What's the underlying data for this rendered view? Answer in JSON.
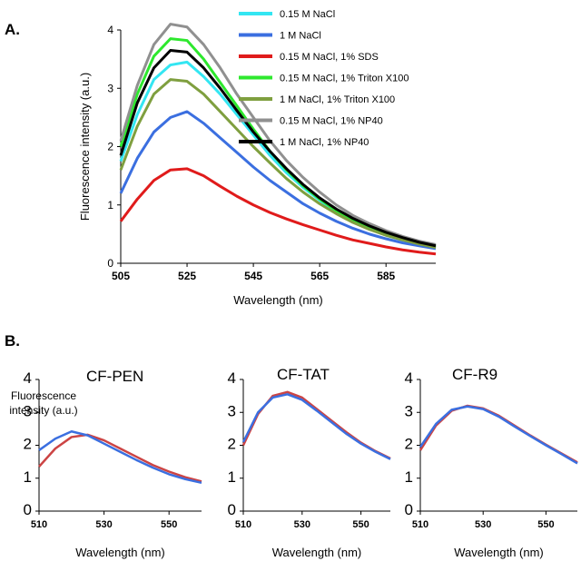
{
  "panel_labels": [
    "A.",
    "B."
  ],
  "chart_data": [
    {
      "type": "line",
      "xlabel": "Wavelength (nm)",
      "ylabel": "Fluorescence intensity (a.u.)",
      "xlim": [
        505,
        600
      ],
      "ylim": [
        0,
        4
      ],
      "xticks": [
        505,
        525,
        545,
        565,
        585
      ],
      "yticks": [
        0,
        1,
        2,
        3,
        4
      ],
      "legend_position": "top-right",
      "x": [
        505,
        510,
        515,
        520,
        525,
        530,
        535,
        540,
        545,
        550,
        555,
        560,
        565,
        570,
        575,
        580,
        585,
        590,
        595,
        600
      ],
      "series": [
        {
          "name": "0.15 M NaCl",
          "color": "#33e6f2",
          "values": [
            1.75,
            2.55,
            3.15,
            3.4,
            3.45,
            3.2,
            2.9,
            2.55,
            2.2,
            1.85,
            1.55,
            1.3,
            1.08,
            0.88,
            0.72,
            0.6,
            0.48,
            0.4,
            0.33,
            0.28
          ]
        },
        {
          "name": "1 M NaCl",
          "color": "#3b6fe0",
          "values": [
            1.2,
            1.8,
            2.25,
            2.5,
            2.6,
            2.4,
            2.15,
            1.9,
            1.65,
            1.42,
            1.22,
            1.02,
            0.86,
            0.72,
            0.6,
            0.5,
            0.42,
            0.35,
            0.3,
            0.25
          ]
        },
        {
          "name": "0.15 M NaCl, 1% SDS",
          "color": "#e01b1b",
          "values": [
            0.72,
            1.1,
            1.42,
            1.6,
            1.62,
            1.5,
            1.32,
            1.15,
            1.0,
            0.87,
            0.76,
            0.66,
            0.57,
            0.48,
            0.4,
            0.34,
            0.28,
            0.23,
            0.19,
            0.16
          ]
        },
        {
          "name": "0.15 M NaCl, 1% Triton X100",
          "color": "#2ee82e",
          "values": [
            2.0,
            2.9,
            3.55,
            3.85,
            3.82,
            3.5,
            3.1,
            2.7,
            2.3,
            1.92,
            1.6,
            1.33,
            1.1,
            0.9,
            0.74,
            0.6,
            0.5,
            0.41,
            0.34,
            0.28
          ]
        },
        {
          "name": "1 M NaCl, 1% Triton X100",
          "color": "#7f9f3f",
          "values": [
            1.6,
            2.35,
            2.9,
            3.15,
            3.12,
            2.9,
            2.6,
            2.3,
            2.0,
            1.72,
            1.45,
            1.22,
            1.02,
            0.85,
            0.7,
            0.58,
            0.48,
            0.4,
            0.33,
            0.27
          ]
        },
        {
          "name": "0.15 M NaCl, 1% NP40",
          "color": "#909090",
          "values": [
            2.1,
            3.05,
            3.75,
            4.1,
            4.05,
            3.75,
            3.35,
            2.9,
            2.5,
            2.1,
            1.76,
            1.47,
            1.22,
            1.0,
            0.82,
            0.68,
            0.56,
            0.46,
            0.38,
            0.32
          ]
        },
        {
          "name": "1 M NaCl, 1% NP40",
          "color": "#000000",
          "values": [
            1.85,
            2.75,
            3.35,
            3.65,
            3.62,
            3.35,
            3.0,
            2.62,
            2.25,
            1.92,
            1.62,
            1.35,
            1.12,
            0.93,
            0.77,
            0.64,
            0.53,
            0.44,
            0.36,
            0.3
          ]
        }
      ]
    },
    {
      "type": "line",
      "title": "CF-PEN",
      "xlabel": "Wavelength (nm)",
      "ylabel": "Fluorescence intensity (a.u.)",
      "xlim": [
        510,
        560
      ],
      "ylim": [
        0,
        4
      ],
      "xticks": [
        510,
        530,
        550
      ],
      "yticks": [
        0,
        1,
        2,
        3,
        4
      ],
      "x": [
        510,
        515,
        520,
        525,
        530,
        535,
        540,
        545,
        550,
        555,
        560
      ],
      "series": [
        {
          "color": "#cc4444",
          "values": [
            1.35,
            1.9,
            2.25,
            2.32,
            2.15,
            1.9,
            1.65,
            1.4,
            1.2,
            1.03,
            0.9
          ]
        },
        {
          "color": "#3b6fe0",
          "values": [
            1.85,
            2.2,
            2.42,
            2.3,
            2.05,
            1.8,
            1.55,
            1.32,
            1.12,
            0.97,
            0.86
          ]
        }
      ]
    },
    {
      "type": "line",
      "title": "CF-TAT",
      "xlabel": "Wavelength (nm)",
      "ylim": [
        0,
        4
      ],
      "xlim": [
        510,
        560
      ],
      "xticks": [
        510,
        530,
        550
      ],
      "yticks": [
        0,
        1,
        2,
        3,
        4
      ],
      "x": [
        510,
        515,
        520,
        525,
        530,
        535,
        540,
        545,
        550,
        555,
        560
      ],
      "series": [
        {
          "color": "#cc4444",
          "values": [
            2.0,
            2.95,
            3.5,
            3.62,
            3.45,
            3.1,
            2.75,
            2.4,
            2.08,
            1.82,
            1.6
          ]
        },
        {
          "color": "#3b6fe0",
          "values": [
            2.1,
            3.0,
            3.45,
            3.55,
            3.38,
            3.05,
            2.7,
            2.35,
            2.05,
            1.8,
            1.58
          ]
        }
      ]
    },
    {
      "type": "line",
      "title": "CF-R9",
      "xlabel": "Wavelength (nm)",
      "ylim": [
        0,
        4
      ],
      "xlim": [
        510,
        560
      ],
      "xticks": [
        510,
        530,
        550
      ],
      "yticks": [
        0,
        1,
        2,
        3,
        4
      ],
      "x": [
        510,
        515,
        520,
        525,
        530,
        535,
        540,
        545,
        550,
        555,
        560
      ],
      "series": [
        {
          "color": "#cc4444",
          "values": [
            1.85,
            2.6,
            3.05,
            3.2,
            3.12,
            2.9,
            2.6,
            2.3,
            2.02,
            1.75,
            1.48
          ]
        },
        {
          "color": "#3b6fe0",
          "values": [
            1.95,
            2.65,
            3.08,
            3.18,
            3.1,
            2.87,
            2.57,
            2.28,
            2.0,
            1.73,
            1.45
          ]
        }
      ]
    }
  ]
}
